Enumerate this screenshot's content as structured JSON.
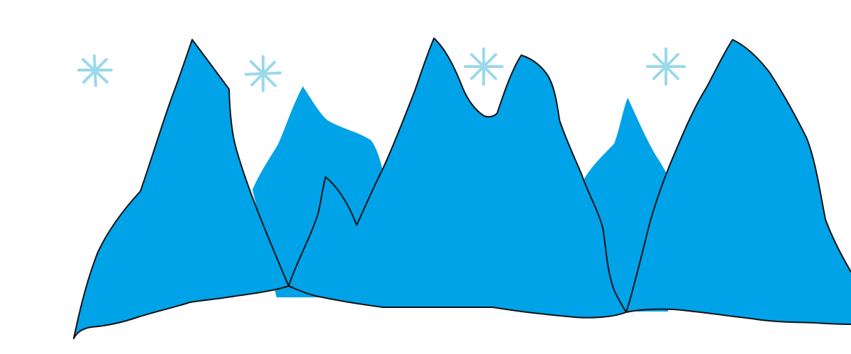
{
  "scene": {
    "background_color": "#ffffff",
    "mountain_fill": "#00a2e8",
    "outline_color": "#111111",
    "snowflake_color": "#99d9ea",
    "snowflake_icon": "snowflake-icon",
    "snowflake_count": 4
  }
}
